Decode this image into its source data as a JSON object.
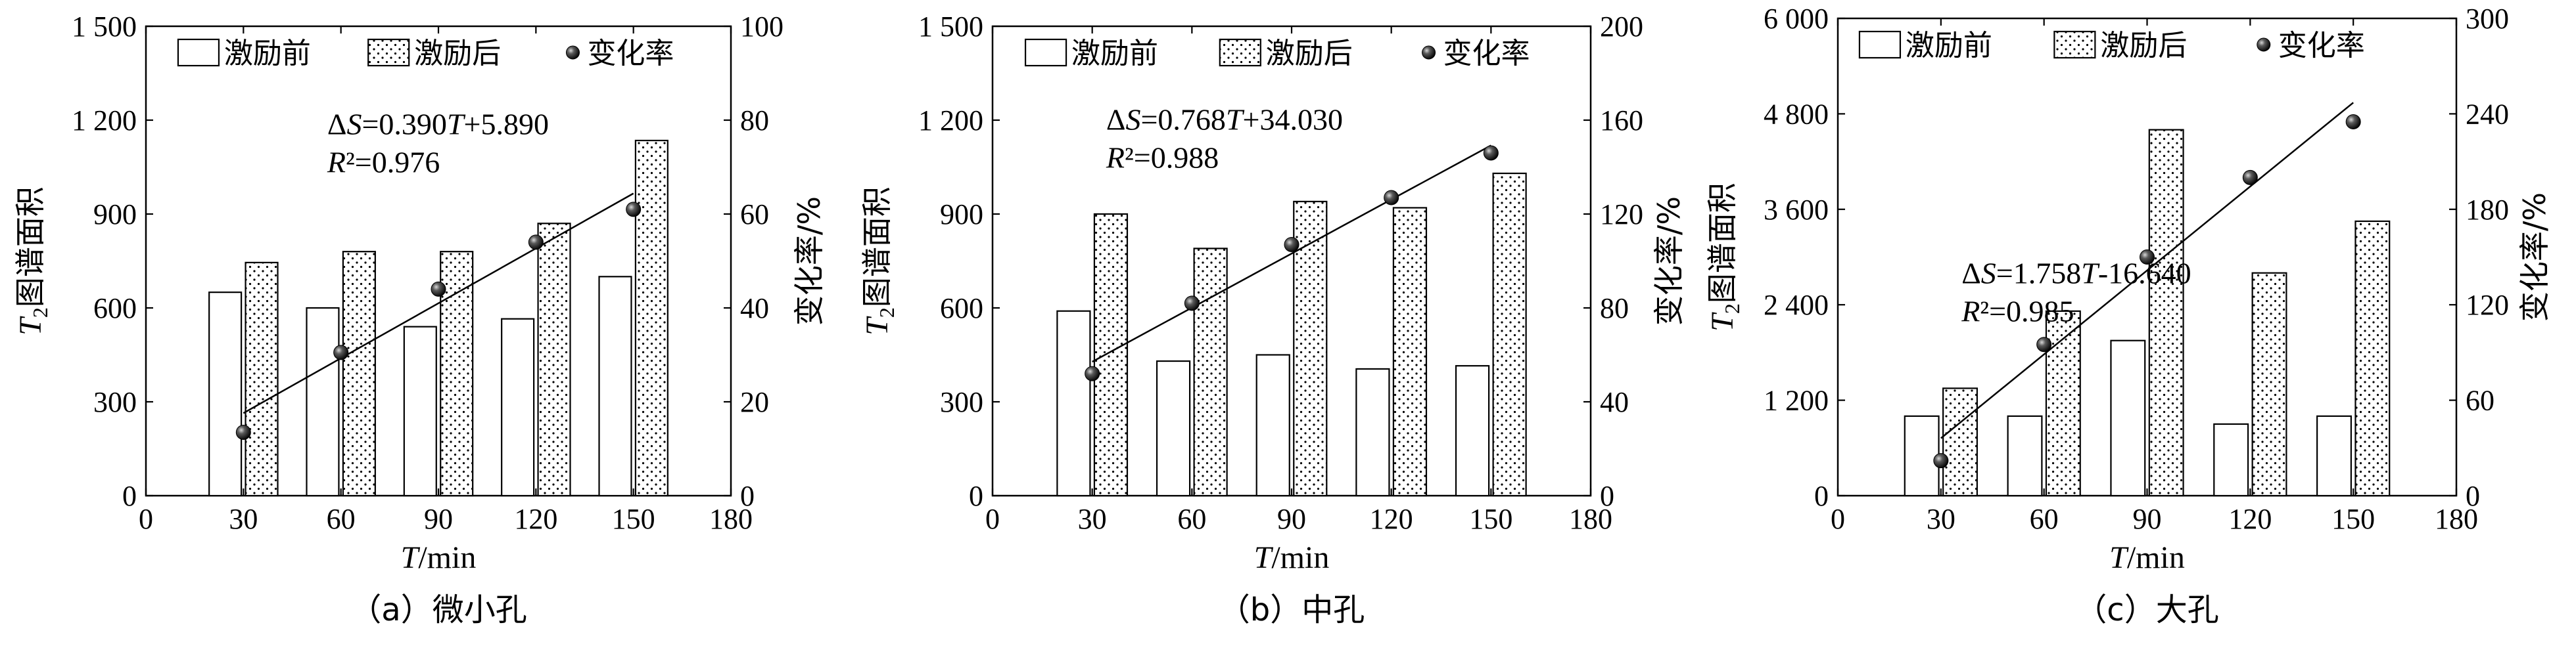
{
  "chart_data": [
    {
      "type": "bar",
      "caption": "（a）微小孔",
      "xlabel_italic": "T",
      "xlabel_unit": "/min",
      "ylabel_italic": "T",
      "ylabel_sub": "2",
      "ylabel_rest": "图谱面积",
      "y2label": "变化率/%",
      "xlim": [
        0,
        180
      ],
      "xticks": [
        0,
        30,
        60,
        90,
        120,
        150,
        180
      ],
      "ylim": [
        0,
        1500
      ],
      "yticks": [
        0,
        300,
        600,
        900,
        1200,
        1500
      ],
      "ytick_labels": [
        "0",
        "300",
        "600",
        "900",
        "1 200",
        "1 500"
      ],
      "y2lim": [
        0,
        100
      ],
      "y2ticks": [
        0,
        20,
        40,
        60,
        80,
        100
      ],
      "categories": [
        30,
        60,
        90,
        120,
        150
      ],
      "series": [
        {
          "name": "激励前",
          "kind": "bar",
          "pattern": "none",
          "values": [
            650,
            600,
            540,
            565,
            700
          ]
        },
        {
          "name": "激励后",
          "kind": "bar",
          "pattern": "dots",
          "values": [
            745,
            780,
            780,
            870,
            1135
          ]
        },
        {
          "name": "变化率",
          "kind": "scatter",
          "axis": "right",
          "values": [
            13.5,
            30.5,
            44,
            54,
            61
          ]
        }
      ],
      "fit": {
        "slope": 0.39,
        "intercept": 5.89,
        "x_range": [
          30,
          150
        ]
      },
      "annotation_line1": "ΔS=0.390T+5.890",
      "annotation_line2": "R²=0.976",
      "legend_location": "top"
    },
    {
      "type": "bar",
      "caption": "（b）中孔",
      "xlabel_italic": "T",
      "xlabel_unit": "/min",
      "ylabel_italic": "T",
      "ylabel_sub": "2",
      "ylabel_rest": "图谱面积",
      "y2label": "变化率/%",
      "xlim": [
        0,
        180
      ],
      "xticks": [
        0,
        30,
        60,
        90,
        120,
        150,
        180
      ],
      "ylim": [
        0,
        1500
      ],
      "yticks": [
        0,
        300,
        600,
        900,
        1200,
        1500
      ],
      "ytick_labels": [
        "0",
        "300",
        "600",
        "900",
        "1 200",
        "1 500"
      ],
      "y2lim": [
        0,
        200
      ],
      "y2ticks": [
        0,
        40,
        80,
        120,
        160,
        200
      ],
      "categories": [
        30,
        60,
        90,
        120,
        150
      ],
      "series": [
        {
          "name": "激励前",
          "kind": "bar",
          "pattern": "none",
          "values": [
            590,
            430,
            450,
            405,
            415
          ]
        },
        {
          "name": "激励后",
          "kind": "bar",
          "pattern": "dots",
          "values": [
            900,
            790,
            940,
            920,
            1030
          ]
        },
        {
          "name": "变化率",
          "kind": "scatter",
          "axis": "right",
          "values": [
            52,
            82,
            107,
            127,
            146
          ]
        }
      ],
      "fit": {
        "slope": 0.768,
        "intercept": 34.03,
        "x_range": [
          30,
          150
        ]
      },
      "annotation_line1": "ΔS=0.768T+34.030",
      "annotation_line2": "R²=0.988",
      "legend_location": "top"
    },
    {
      "type": "bar",
      "caption": "（c）大孔",
      "xlabel_italic": "T",
      "xlabel_unit": "/min",
      "ylabel_italic": "T",
      "ylabel_sub": "2",
      "ylabel_rest": "图谱面积",
      "y2label": "变化率/%",
      "xlim": [
        0,
        180
      ],
      "xticks": [
        0,
        30,
        60,
        90,
        120,
        150,
        180
      ],
      "ylim": [
        0,
        6000
      ],
      "yticks": [
        0,
        1200,
        2400,
        3600,
        4800,
        6000
      ],
      "ytick_labels": [
        "0",
        "1 200",
        "2 400",
        "3 600",
        "4 800",
        "6 000"
      ],
      "y2lim": [
        0,
        300
      ],
      "y2ticks": [
        0,
        60,
        120,
        180,
        240,
        300
      ],
      "categories": [
        30,
        60,
        90,
        120,
        150
      ],
      "series": [
        {
          "name": "激励前",
          "kind": "bar",
          "pattern": "none",
          "values": [
            1000,
            1000,
            1950,
            900,
            1000
          ]
        },
        {
          "name": "激励后",
          "kind": "bar",
          "pattern": "dots",
          "values": [
            1350,
            2320,
            4600,
            2800,
            3450
          ]
        },
        {
          "name": "变化率",
          "kind": "scatter",
          "axis": "right",
          "values": [
            22,
            95,
            150,
            200,
            235
          ]
        }
      ],
      "fit": {
        "slope": 1.758,
        "intercept": -16.64,
        "x_range": [
          30,
          150
        ]
      },
      "annotation_line1": "ΔS=1.758T-16.640",
      "annotation_line2": "R²=0.985",
      "legend_location": "top"
    }
  ]
}
